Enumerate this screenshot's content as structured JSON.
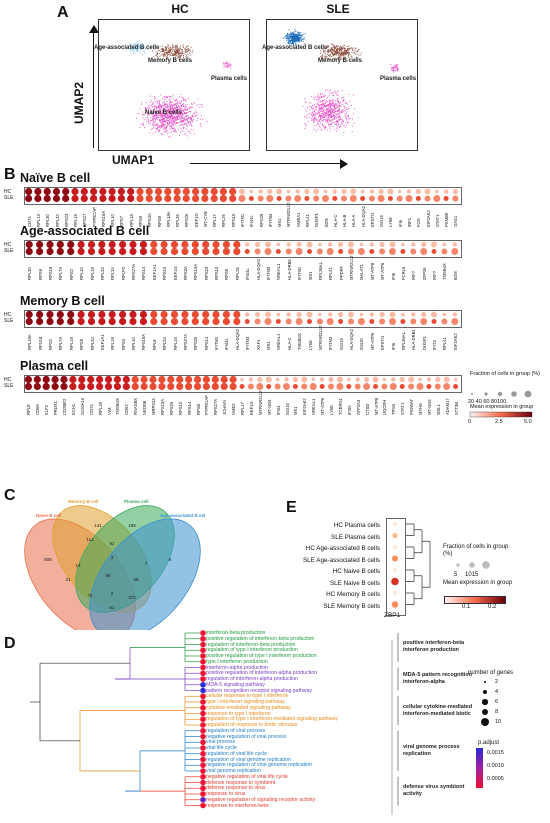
{
  "panels": {
    "A": {
      "letter": "A",
      "hc_title": "HC",
      "sle_title": "SLE",
      "y_axis": "UMAP2",
      "x_axis": "UMAP1",
      "hc_labels": [
        "Age-associated B cells",
        "Memory B cells",
        "Plasma cells",
        "Naive B cells"
      ],
      "sle_labels": [
        "Age-associated B cells",
        "Memory B cells",
        "Plasma cells"
      ]
    },
    "B": {
      "letter": "B",
      "groups": [
        {
          "title": "Naïve B cell",
          "rows": [
            "HC",
            "SLE"
          ],
          "genes": [
            "CD74",
            "RPL13",
            "RPL30",
            "RPL32",
            "RPS23",
            "RPL19",
            "RPS27",
            "PTPRCAP",
            "RPS15A",
            "RPL10",
            "RPS7",
            "RPL18",
            "RPS8",
            "RPS3A",
            "RPS8",
            "RPL18A",
            "RPL36",
            "RPS26",
            "EEF1G",
            "MT-CYB",
            "RPL17",
            "RPL26",
            "RPS10",
            "IFITM1",
            "IFI44L",
            "RPS29",
            "IFITM3",
            "MX1",
            "MTRNR2L12",
            "NMEA1",
            "RPL41",
            "DUSP1",
            "B2M",
            "HLA-C",
            "HLA-B",
            "HLA-A",
            "HLA-DQA2",
            "EPSTI1",
            "ISG15",
            "LY6E",
            "IFI6",
            "IRF1",
            "FOS",
            "EIF2AK2",
            "STAT1",
            "PSMB9",
            "OAS1"
          ]
        },
        {
          "title": "Age-associated B cell",
          "rows": [
            "HC",
            "SLE"
          ],
          "genes": [
            "RPL30",
            "RPS9",
            "RPS18",
            "RPL7A",
            "RPS2",
            "RPL10",
            "RPL19",
            "RPL32",
            "RPL34",
            "RPLP2",
            "RPS27A",
            "RPS14",
            "EEF1A1",
            "RPS10",
            "EEF1G",
            "RPS3A",
            "RPS15A",
            "RPS23",
            "RPS10",
            "RPS8",
            "RPL26",
            "IFI44L",
            "HLA-DQA2",
            "IFITM3",
            "NREAL1",
            "HLA-DRB5",
            "IFITM1",
            "MX1",
            "RPL36AL",
            "RPL41",
            "PPDPF",
            "MTRNR2L12",
            "MALAT1",
            "MT-ATP8",
            "MT-ATP6",
            "IFI6",
            "FCRL5",
            "IRF7",
            "ZFP36",
            "IRF7",
            "TMSB4X",
            "B2M"
          ]
        },
        {
          "title": "Memory B cell",
          "rows": [
            "HC",
            "SLE"
          ],
          "genes": [
            "RPL18A",
            "RPS18",
            "RPS2",
            "RPL7A",
            "RPL19",
            "RPS9",
            "RPL32",
            "EEF1A1",
            "RPL19",
            "RPS3",
            "RPL10",
            "RPS15A",
            "RPL8",
            "RPL34",
            "RPL15",
            "RPS27A",
            "RPS26",
            "RPS14",
            "IFITM1",
            "IFI44L",
            "HLA-DQA2",
            "IFITM3",
            "XAF1",
            "MX1",
            "NREAL1",
            "HLA-C",
            "TMSB4X",
            "LY6E",
            "MTRNR2L12",
            "IFITM3",
            "ISG15",
            "HLA-DQA2",
            "ISG20",
            "MT-ATP6",
            "EPSTI1",
            "IFI6",
            "RPL36AL",
            "HLA-DRB1",
            "DUSP1",
            "IFIT3",
            "RPL41",
            "EIF2AK2"
          ]
        },
        {
          "title": "Plasma cell",
          "rows": [
            "HC",
            "SLE"
          ],
          "genes": [
            "RPL8",
            "CD59",
            "KLF2",
            "PRDX1",
            "CD2BP2",
            "ECH1",
            "S100A10",
            "CD74",
            "RPL18",
            "VIM",
            "TMSB4X",
            "CD52",
            "RNASEK",
            "NEDD8",
            "MRPS24",
            "RPS15A",
            "RPS26",
            "RPS10",
            "RPS14",
            "RPS8",
            "PTPRCAP",
            "RPS27A",
            "JCHAIN",
            "NME2",
            "RPL17",
            "EEF1G",
            "MTRNR2L12",
            "MT-ND4",
            "IFI44",
            "ISG15",
            "MX1",
            "EIF2AK2",
            "NREAL1",
            "MT-ATP6",
            "LY6E",
            "TCERG1",
            "IFI35",
            "ATP2A3",
            "CTSD",
            "MT-ATP8",
            "UQCRH",
            "TPM4",
            "STAT1",
            "PIGWAT",
            "MYH9",
            "MT-ND3",
            "MSL1",
            "ADAM17",
            "STT3B"
          ]
        }
      ],
      "legend": {
        "fraction_title": "Fraction of cells in group (%)",
        "fraction_ticks": [
          "20",
          "40",
          "60",
          "80",
          "100"
        ],
        "mean_title": "Mean expression in group",
        "mean_ticks": [
          "0",
          "2.5",
          "5.0"
        ]
      }
    },
    "C": {
      "letter": "C",
      "sets": [
        "Naive B cell",
        "Memory B cell",
        "Plasma cell",
        "Age-associated B cell"
      ],
      "set_colors": [
        "#e8704a",
        "#e0a030",
        "#3aaa5a",
        "#3a8fd0"
      ],
      "numbers": [
        "131",
        "196",
        "114",
        "92",
        "808",
        "3",
        "14",
        "7",
        "6",
        "31",
        "56",
        "58",
        "2",
        "75",
        "374",
        "61"
      ]
    },
    "D": {
      "letter": "D",
      "clusters": [
        {
          "label": "positive interferon-beta interferon production",
          "color": "#1e9a3c",
          "terms": [
            "interferon-beta production",
            "positive regulation of interferon-beta production",
            "regulation of interferon-beta production",
            "regulation of type I interferon production",
            "positive regulation of type I interferon production",
            "type I interferon production"
          ]
        },
        {
          "label": "MDA-5 pattern recognition interferon-alpha",
          "color": "#7a3ec8",
          "terms": [
            "interferon-alpha production",
            "positive regulation of interferon-alpha production",
            "regulation of interferon-alpha production",
            "MDA-5 signaling pathway",
            "pattern recognition receptor signaling pathway"
          ]
        },
        {
          "label": "cellular cytokine-mediated interferon-mediated biotic",
          "color": "#e88a1a",
          "terms": [
            "cellular response to type I interferon",
            "type I interferon signaling pathway",
            "cytokine-mediated signaling pathway",
            "response to type I interferon",
            "regulation of type I interferon-mediated signaling pathway",
            "regulation of response to biotic stimulus"
          ]
        },
        {
          "label": "viral genome process replication",
          "color": "#1a7cc8",
          "terms": [
            "regulation of viral process",
            "negative regulation of viral process",
            "viral process",
            "viral life cycle",
            "regulation of viral life cycle",
            "regulation of viral genome replication",
            "negative regulation of viral genome replication",
            "viral genome replication"
          ]
        },
        {
          "label": "defense virus symbiont activity",
          "color": "#e83a2a",
          "terms": [
            "negative regulation of viral life cycle",
            "defense response to symbiont",
            "defense response to virus",
            "response to virus",
            "negative regulation of signaling receptor activity",
            "response to interferon-beta"
          ]
        }
      ],
      "size_legend": {
        "title": "number of genes",
        "values": [
          "2",
          "4",
          "6",
          "8",
          "10"
        ]
      },
      "color_legend": {
        "title": "p.adjust",
        "values": [
          "0.0015",
          "0.0010",
          "0.0005"
        ]
      }
    },
    "E": {
      "letter": "E",
      "rows": [
        "HC Plasma cells",
        "SLE Plasma cells",
        "HC Age-associated B cells",
        "SLE Age-associated B cells",
        "HC Naive B cells",
        "SLE Naive B cells",
        "HC Memory B cells",
        "SLE Memory B cells"
      ],
      "row_values": [
        0.05,
        0.08,
        0.05,
        0.12,
        0.03,
        0.2,
        0.03,
        0.15
      ],
      "gene": "ZBP1",
      "fraction_title": "Fraction of cells in group (%)",
      "fraction_ticks": [
        "5",
        "10",
        "15"
      ],
      "mean_title": "Mean expression in group",
      "mean_ticks": [
        "0.1",
        "0.2"
      ]
    }
  }
}
